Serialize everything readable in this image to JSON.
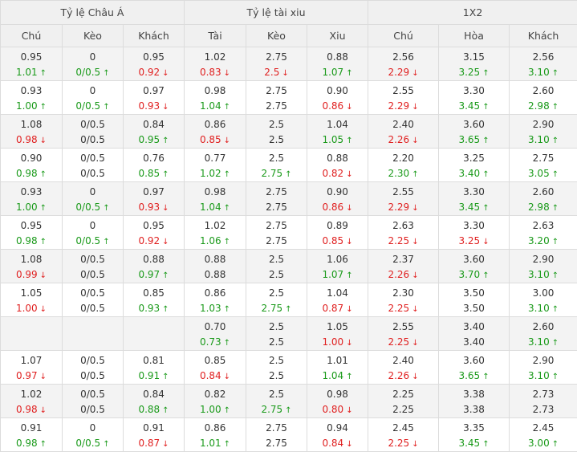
{
  "headers": {
    "groups": [
      "Tỷ lệ Châu Á",
      "Tỷ lệ tài xiu",
      "1X2"
    ],
    "columns": [
      "Chú",
      "Kèo",
      "Khách",
      "Tài",
      "Kèo",
      "Xiu",
      "Chú",
      "Hòa",
      "Khách"
    ]
  },
  "rows": [
    {
      "top": [
        "0.95",
        "0",
        "0.95",
        "1.02",
        "2.75",
        "0.88",
        "2.56",
        "3.15",
        "2.56"
      ],
      "bottom": [
        "1.01",
        "0/0.5",
        "0.92",
        "0.83",
        "2.5",
        "1.07",
        "2.29",
        "3.25",
        "3.10"
      ],
      "dir": [
        "up",
        "up",
        "down",
        "down",
        "down",
        "up",
        "down",
        "up",
        "up"
      ]
    },
    {
      "top": [
        "0.93",
        "0",
        "0.97",
        "0.98",
        "2.75",
        "0.90",
        "2.55",
        "3.30",
        "2.60"
      ],
      "bottom": [
        "1.00",
        "0/0.5",
        "0.93",
        "1.04",
        "2.75",
        "0.86",
        "2.29",
        "3.45",
        "2.98"
      ],
      "dir": [
        "up",
        "up",
        "down",
        "up",
        "",
        "down",
        "down",
        "up",
        "up"
      ]
    },
    {
      "top": [
        "1.08",
        "0/0.5",
        "0.84",
        "0.86",
        "2.5",
        "1.04",
        "2.40",
        "3.60",
        "2.90"
      ],
      "bottom": [
        "0.98",
        "0/0.5",
        "0.95",
        "0.85",
        "2.5",
        "1.05",
        "2.26",
        "3.65",
        "3.10"
      ],
      "dir": [
        "down",
        "",
        "up",
        "down",
        "",
        "up",
        "down",
        "up",
        "up"
      ]
    },
    {
      "top": [
        "0.90",
        "0/0.5",
        "0.76",
        "0.77",
        "2.5",
        "0.88",
        "2.20",
        "3.25",
        "2.75"
      ],
      "bottom": [
        "0.98",
        "0/0.5",
        "0.85",
        "1.02",
        "2.75",
        "0.82",
        "2.30",
        "3.40",
        "3.05"
      ],
      "dir": [
        "up",
        "",
        "up",
        "up",
        "up",
        "down",
        "up",
        "up",
        "up"
      ]
    },
    {
      "top": [
        "0.93",
        "0",
        "0.97",
        "0.98",
        "2.75",
        "0.90",
        "2.55",
        "3.30",
        "2.60"
      ],
      "bottom": [
        "1.00",
        "0/0.5",
        "0.93",
        "1.04",
        "2.75",
        "0.86",
        "2.29",
        "3.45",
        "2.98"
      ],
      "dir": [
        "up",
        "up",
        "down",
        "up",
        "",
        "down",
        "down",
        "up",
        "up"
      ]
    },
    {
      "top": [
        "0.95",
        "0",
        "0.95",
        "1.02",
        "2.75",
        "0.89",
        "2.63",
        "3.30",
        "2.63"
      ],
      "bottom": [
        "0.98",
        "0/0.5",
        "0.92",
        "1.06",
        "2.75",
        "0.85",
        "2.25",
        "3.25",
        "3.20"
      ],
      "dir": [
        "up",
        "up",
        "down",
        "up",
        "",
        "down",
        "down",
        "down",
        "up"
      ]
    },
    {
      "top": [
        "1.08",
        "0/0.5",
        "0.88",
        "0.88",
        "2.5",
        "1.06",
        "2.37",
        "3.60",
        "2.90"
      ],
      "bottom": [
        "0.99",
        "0/0.5",
        "0.97",
        "0.88",
        "2.5",
        "1.07",
        "2.26",
        "3.70",
        "3.10"
      ],
      "dir": [
        "down",
        "",
        "up",
        "",
        "",
        "up",
        "down",
        "up",
        "up"
      ]
    },
    {
      "top": [
        "1.05",
        "0/0.5",
        "0.85",
        "0.86",
        "2.5",
        "1.04",
        "2.30",
        "3.50",
        "3.00"
      ],
      "bottom": [
        "1.00",
        "0/0.5",
        "0.93",
        "1.03",
        "2.75",
        "0.87",
        "2.25",
        "3.50",
        "3.10"
      ],
      "dir": [
        "down",
        "",
        "up",
        "up",
        "up",
        "down",
        "down",
        "",
        "up"
      ]
    },
    {
      "top": [
        "",
        "",
        "",
        "0.70",
        "2.5",
        "1.05",
        "2.55",
        "3.40",
        "2.60"
      ],
      "bottom": [
        "",
        "",
        "",
        "0.73",
        "2.5",
        "1.00",
        "2.25",
        "3.40",
        "3.10"
      ],
      "dir": [
        "",
        "",
        "",
        "up",
        "",
        "down",
        "down",
        "",
        "up"
      ]
    },
    {
      "top": [
        "1.07",
        "0/0.5",
        "0.81",
        "0.85",
        "2.5",
        "1.01",
        "2.40",
        "3.60",
        "2.90"
      ],
      "bottom": [
        "0.97",
        "0/0.5",
        "0.91",
        "0.84",
        "2.5",
        "1.04",
        "2.26",
        "3.65",
        "3.10"
      ],
      "dir": [
        "down",
        "",
        "up",
        "down",
        "",
        "up",
        "down",
        "up",
        "up"
      ]
    },
    {
      "top": [
        "1.02",
        "0/0.5",
        "0.84",
        "0.82",
        "2.5",
        "0.98",
        "2.25",
        "3.38",
        "2.73"
      ],
      "bottom": [
        "0.98",
        "0/0.5",
        "0.88",
        "1.00",
        "2.75",
        "0.80",
        "2.25",
        "3.38",
        "2.73"
      ],
      "dir": [
        "down",
        "",
        "up",
        "up",
        "up",
        "down",
        "",
        "",
        ""
      ]
    },
    {
      "top": [
        "0.91",
        "0",
        "0.91",
        "0.86",
        "2.75",
        "0.94",
        "2.45",
        "3.35",
        "2.45"
      ],
      "bottom": [
        "0.98",
        "0/0.5",
        "0.87",
        "1.01",
        "2.75",
        "0.84",
        "2.25",
        "3.45",
        "3.00"
      ],
      "dir": [
        "up",
        "up",
        "down",
        "up",
        "",
        "down",
        "down",
        "up",
        "up"
      ]
    }
  ],
  "colors": {
    "up": "#1a9a1a",
    "down": "#e02020",
    "header_bg": "#f0f0f0",
    "row_alt_bg": "#f3f3f3"
  },
  "icons": {
    "up": "arrow-up-icon",
    "down": "arrow-down-icon"
  }
}
